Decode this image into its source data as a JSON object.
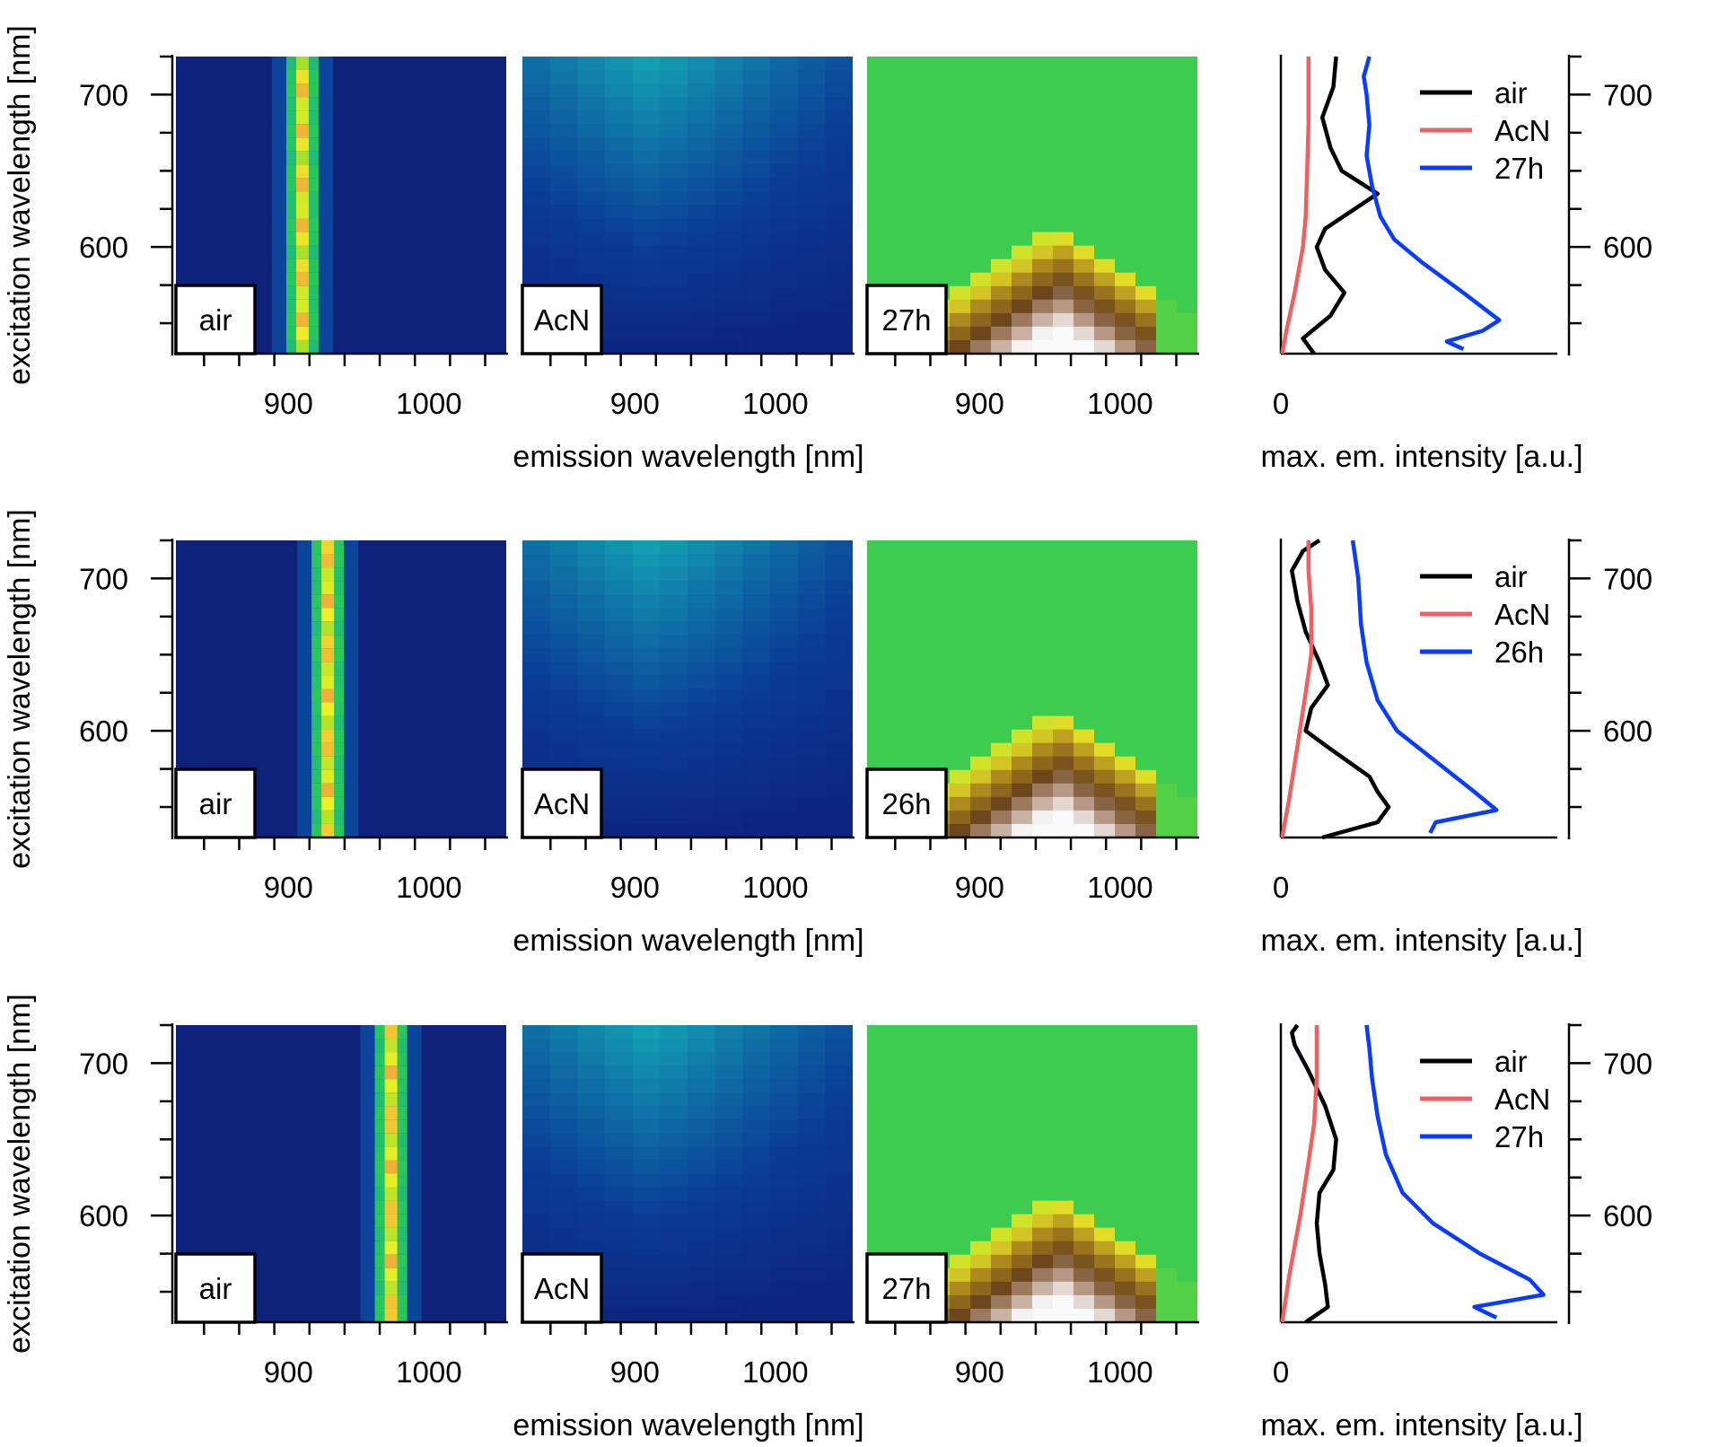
{
  "chart_data": [
    {
      "type": "heatmap",
      "row": 1,
      "panels": [
        {
          "label": "air",
          "colormap": "rainbow",
          "peak_emission_nm": 910
        },
        {
          "label": "AcN",
          "colormap": "rainbow"
        },
        {
          "label": "27h",
          "colormap": "rainbow-brown"
        }
      ],
      "xticks": [
        900,
        1000
      ],
      "xlim": [
        820,
        1055
      ],
      "yticks": [
        600,
        700
      ],
      "ylim": [
        530,
        725
      ],
      "xlabel": "emission wavelength [nm]",
      "ylabel": "excitation wavelength [nm]",
      "profile": {
        "type": "line",
        "xlabel": "max. em. intensity [a.u.]",
        "xticks": [
          0
        ],
        "xlim": [
          0,
          10
        ],
        "yticks": [
          600,
          700
        ],
        "legend_position": "top-right",
        "series": [
          {
            "name": "air",
            "color": "#000000",
            "x": [
              1.2,
              0.8,
              1.8,
              2.3,
              1.6,
              1.3,
              1.6,
              3.5,
              2.2,
              1.8,
              1.5,
              1.9,
              2.0
            ],
            "y": [
              530,
              540,
              555,
              570,
              585,
              600,
              612,
              635,
              650,
              665,
              685,
              705,
              725
            ]
          },
          {
            "name": "AcN",
            "color": "#f06060",
            "x": [
              0.05,
              0.2,
              0.5,
              0.8,
              0.9,
              0.95,
              1.0,
              1.0,
              1.0
            ],
            "y": [
              530,
              545,
              570,
              600,
              620,
              650,
              680,
              705,
              725
            ]
          },
          {
            "name": "27h",
            "color": "#0a3cff",
            "x": [
              6.6,
              6.0,
              7.3,
              7.9,
              6.6,
              5.1,
              4.1,
              3.6,
              3.3,
              3.1,
              3.2,
              3.1,
              3.0,
              3.2
            ],
            "y": [
              533,
              538,
              545,
              552,
              570,
              590,
              605,
              620,
              640,
              660,
              680,
              700,
              712,
              725
            ]
          }
        ]
      }
    },
    {
      "type": "heatmap",
      "row": 2,
      "panels": [
        {
          "label": "air",
          "colormap": "rainbow",
          "peak_emission_nm": 928
        },
        {
          "label": "AcN",
          "colormap": "rainbow"
        },
        {
          "label": "26h",
          "colormap": "rainbow-brown"
        }
      ],
      "xticks": [
        900,
        1000
      ],
      "xlim": [
        820,
        1055
      ],
      "yticks": [
        600,
        700
      ],
      "ylim": [
        530,
        725
      ],
      "xlabel": "emission wavelength [nm]",
      "ylabel": "excitation wavelength [nm]",
      "profile": {
        "type": "line",
        "xlabel": "max. em. intensity [a.u.]",
        "xticks": [
          0
        ],
        "xlim": [
          0,
          10
        ],
        "yticks": [
          600,
          700
        ],
        "legend_position": "top-right",
        "series": [
          {
            "name": "air",
            "color": "#000000",
            "x": [
              1.5,
              3.5,
              3.9,
              3.5,
              3.2,
              1.8,
              0.9,
              1.1,
              1.7,
              1.4,
              0.9,
              0.6,
              0.4,
              0.8,
              1.4
            ],
            "y": [
              530,
              540,
              550,
              560,
              570,
              588,
              600,
              615,
              630,
              645,
              665,
              685,
              705,
              718,
              725
            ]
          },
          {
            "name": "AcN",
            "color": "#f06060",
            "x": [
              0.05,
              0.3,
              0.6,
              0.9,
              1.1,
              1.1,
              1.0,
              1.0
            ],
            "y": [
              530,
              555,
              590,
              625,
              650,
              680,
              705,
              725
            ]
          },
          {
            "name": "26h",
            "color": "#0a3cff",
            "x": [
              5.4,
              5.6,
              7.8,
              7.0,
              5.6,
              4.2,
              3.5,
              3.1,
              2.9,
              2.8,
              2.6
            ],
            "y": [
              533,
              540,
              548,
              560,
              580,
              600,
              620,
              645,
              670,
              700,
              725
            ]
          }
        ]
      }
    },
    {
      "type": "heatmap",
      "row": 3,
      "panels": [
        {
          "label": "air",
          "colormap": "rainbow",
          "peak_emission_nm": 973
        },
        {
          "label": "AcN",
          "colormap": "rainbow"
        },
        {
          "label": "27h",
          "colormap": "rainbow-brown"
        }
      ],
      "xticks": [
        900,
        1000
      ],
      "xlim": [
        820,
        1055
      ],
      "yticks": [
        600,
        700
      ],
      "ylim": [
        530,
        725
      ],
      "xlabel": "emission wavelength [nm]",
      "ylabel": "excitation wavelength [nm]",
      "profile": {
        "type": "line",
        "xlabel": "max. em. intensity [a.u.]",
        "xticks": [
          0
        ],
        "xlim": [
          0,
          10
        ],
        "yticks": [
          600,
          700
        ],
        "legend_position": "top-right",
        "series": [
          {
            "name": "air",
            "color": "#000000",
            "x": [
              0.9,
              1.7,
              1.6,
              1.4,
              1.3,
              1.4,
              1.9,
              2.0,
              1.6,
              1.0,
              0.5,
              0.4,
              0.6
            ],
            "y": [
              530,
              540,
              555,
              575,
              595,
              615,
              630,
              650,
              672,
              695,
              712,
              720,
              725
            ]
          },
          {
            "name": "AcN",
            "color": "#f06060",
            "x": [
              0.05,
              0.3,
              0.7,
              1.0,
              1.2,
              1.3,
              1.3,
              1.3
            ],
            "y": [
              530,
              560,
              600,
              635,
              660,
              690,
              710,
              725
            ]
          },
          {
            "name": "27h",
            "color": "#0a3cff",
            "x": [
              7.8,
              7.0,
              9.5,
              9.0,
              7.2,
              5.5,
              4.4,
              3.8,
              3.5,
              3.3,
              3.2,
              3.1
            ],
            "y": [
              533,
              540,
              548,
              558,
              575,
              595,
              615,
              640,
              665,
              690,
              710,
              725
            ]
          }
        ]
      }
    }
  ]
}
